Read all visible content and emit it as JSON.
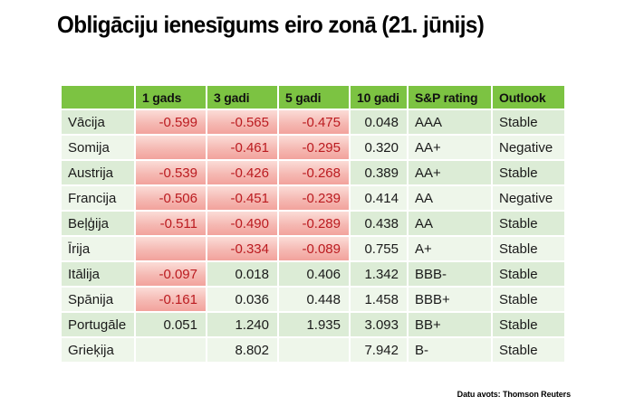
{
  "chart_data": {
    "type": "table",
    "title": "Obligāciju ienesīgums eiro zonā (21. jūnijs)",
    "source_label": "Datu avots: Thomson Reuters",
    "columns": [
      "",
      "1 gads",
      "3 gadi",
      "5 gadi",
      "10 gadi",
      "S&P rating",
      "Outlook"
    ],
    "rows": [
      {
        "country": "Vācija",
        "yields": [
          {
            "value": "-0.599",
            "negative": true
          },
          {
            "value": "-0.565",
            "negative": true
          },
          {
            "value": "-0.475",
            "negative": true
          },
          {
            "value": "0.048",
            "negative": false
          }
        ],
        "rating": "AAA",
        "outlook": "Stable"
      },
      {
        "country": "Somija",
        "yields": [
          {
            "value": "",
            "negative": true
          },
          {
            "value": "-0.461",
            "negative": true
          },
          {
            "value": "-0.295",
            "negative": true
          },
          {
            "value": "0.320",
            "negative": false
          }
        ],
        "rating": "AA+",
        "outlook": "Negative"
      },
      {
        "country": "Austrija",
        "yields": [
          {
            "value": "-0.539",
            "negative": true
          },
          {
            "value": "-0.426",
            "negative": true
          },
          {
            "value": "-0.268",
            "negative": true
          },
          {
            "value": "0.389",
            "negative": false
          }
        ],
        "rating": "AA+",
        "outlook": "Stable"
      },
      {
        "country": "Francija",
        "yields": [
          {
            "value": "-0.506",
            "negative": true
          },
          {
            "value": "-0.451",
            "negative": true
          },
          {
            "value": "-0.239",
            "negative": true
          },
          {
            "value": "0.414",
            "negative": false
          }
        ],
        "rating": "AA",
        "outlook": "Negative"
      },
      {
        "country": "Beļģija",
        "yields": [
          {
            "value": "-0.511",
            "negative": true
          },
          {
            "value": "-0.490",
            "negative": true
          },
          {
            "value": "-0.289",
            "negative": true
          },
          {
            "value": "0.438",
            "negative": false
          }
        ],
        "rating": "AA",
        "outlook": "Stable"
      },
      {
        "country": "Īrija",
        "yields": [
          {
            "value": "",
            "negative": true
          },
          {
            "value": "-0.334",
            "negative": true
          },
          {
            "value": "-0.089",
            "negative": true
          },
          {
            "value": "0.755",
            "negative": false
          }
        ],
        "rating": "A+",
        "outlook": "Stable"
      },
      {
        "country": "Itālija",
        "yields": [
          {
            "value": "-0.097",
            "negative": true
          },
          {
            "value": "0.018",
            "negative": false
          },
          {
            "value": "0.406",
            "negative": false
          },
          {
            "value": "1.342",
            "negative": false
          }
        ],
        "rating": "BBB-",
        "outlook": "Stable"
      },
      {
        "country": "Spānija",
        "yields": [
          {
            "value": "-0.161",
            "negative": true
          },
          {
            "value": "0.036",
            "negative": false
          },
          {
            "value": "0.448",
            "negative": false
          },
          {
            "value": "1.458",
            "negative": false
          }
        ],
        "rating": "BBB+",
        "outlook": "Stable"
      },
      {
        "country": "Portugāle",
        "yields": [
          {
            "value": "0.051",
            "negative": false
          },
          {
            "value": "1.240",
            "negative": false
          },
          {
            "value": "1.935",
            "negative": false
          },
          {
            "value": "3.093",
            "negative": false
          }
        ],
        "rating": "BB+",
        "outlook": "Stable"
      },
      {
        "country": "Grieķija",
        "yields": [
          {
            "value": "",
            "negative": false
          },
          {
            "value": "8.802",
            "negative": false
          },
          {
            "value": "",
            "negative": false
          },
          {
            "value": "7.942",
            "negative": false
          }
        ],
        "rating": "B-",
        "outlook": "Stable"
      }
    ],
    "legend_note": "negative yields highlighted red",
    "colors": {
      "header_green": "#7cc342",
      "row_green_odd": "#dcecd6",
      "row_green_even": "#eef6ea",
      "negative_cell_top": "#fbdcd7",
      "negative_cell_bottom": "#f2a29c",
      "negative_text": "#bb1b20",
      "text": "#1a1a1a",
      "background": "#ffffff"
    }
  }
}
